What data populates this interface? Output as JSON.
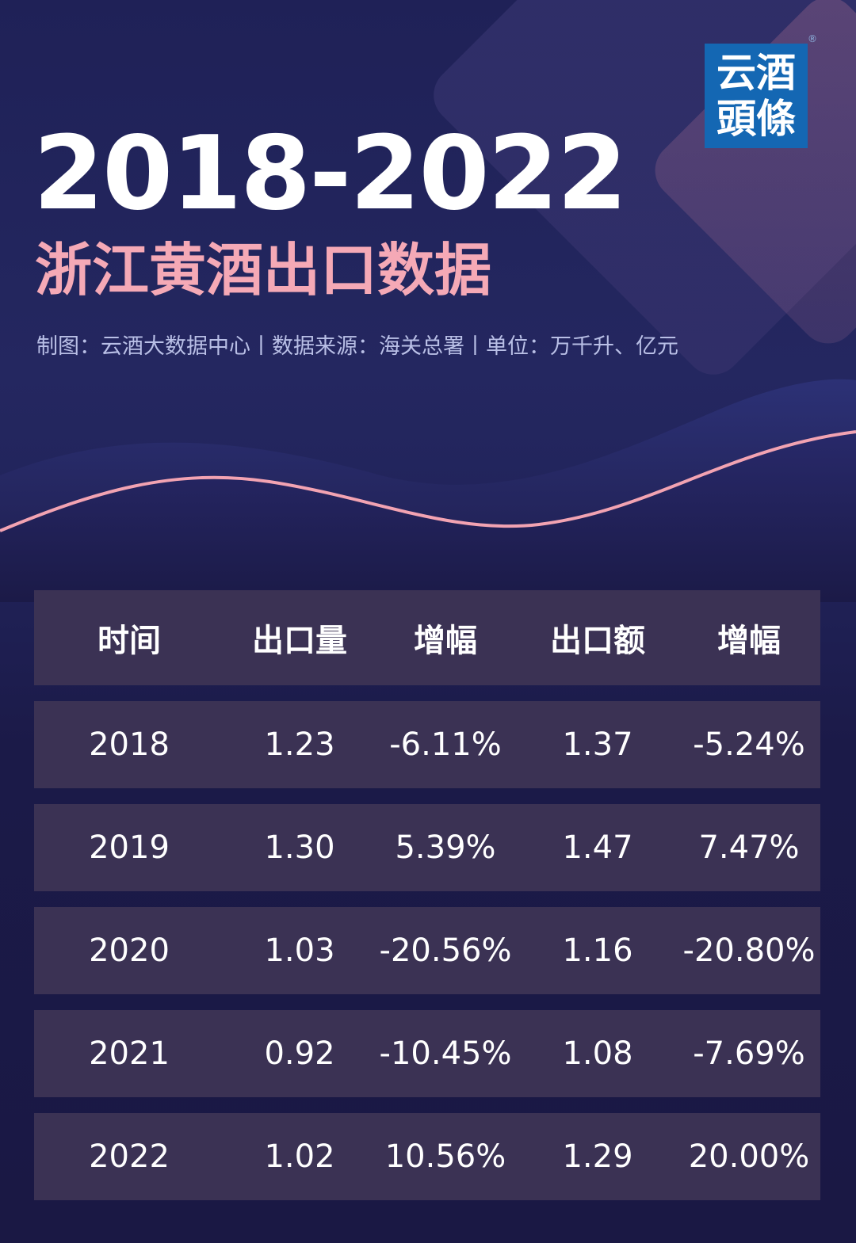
{
  "header": {
    "title_years": "2018-2022",
    "title_main": "浙江黄酒出口数据",
    "subtitle": "制图：云酒大数据中心丨数据来源：海关总署丨单位：万千升、亿元"
  },
  "logo": {
    "line1": "云酒",
    "line2": "頭條",
    "registered": "®",
    "color": "#1467b3"
  },
  "colors": {
    "background": "#1c1b45",
    "row": "#3b3254",
    "accent_pink": "#f5a9b6"
  },
  "chart_data": {
    "type": "table",
    "columns": [
      "时间",
      "出口量",
      "增幅",
      "出口额",
      "增幅"
    ],
    "rows": [
      [
        "2018",
        "1.23",
        "-6.11%",
        "1.37",
        "-5.24%"
      ],
      [
        "2019",
        "1.30",
        "5.39%",
        "1.47",
        "7.47%"
      ],
      [
        "2020",
        "1.03",
        "-20.56%",
        "1.16",
        "-20.80%"
      ],
      [
        "2021",
        "0.92",
        "-10.45%",
        "1.08",
        "-7.69%"
      ],
      [
        "2022",
        "1.02",
        "10.56%",
        "1.29",
        "20.00%"
      ]
    ]
  }
}
